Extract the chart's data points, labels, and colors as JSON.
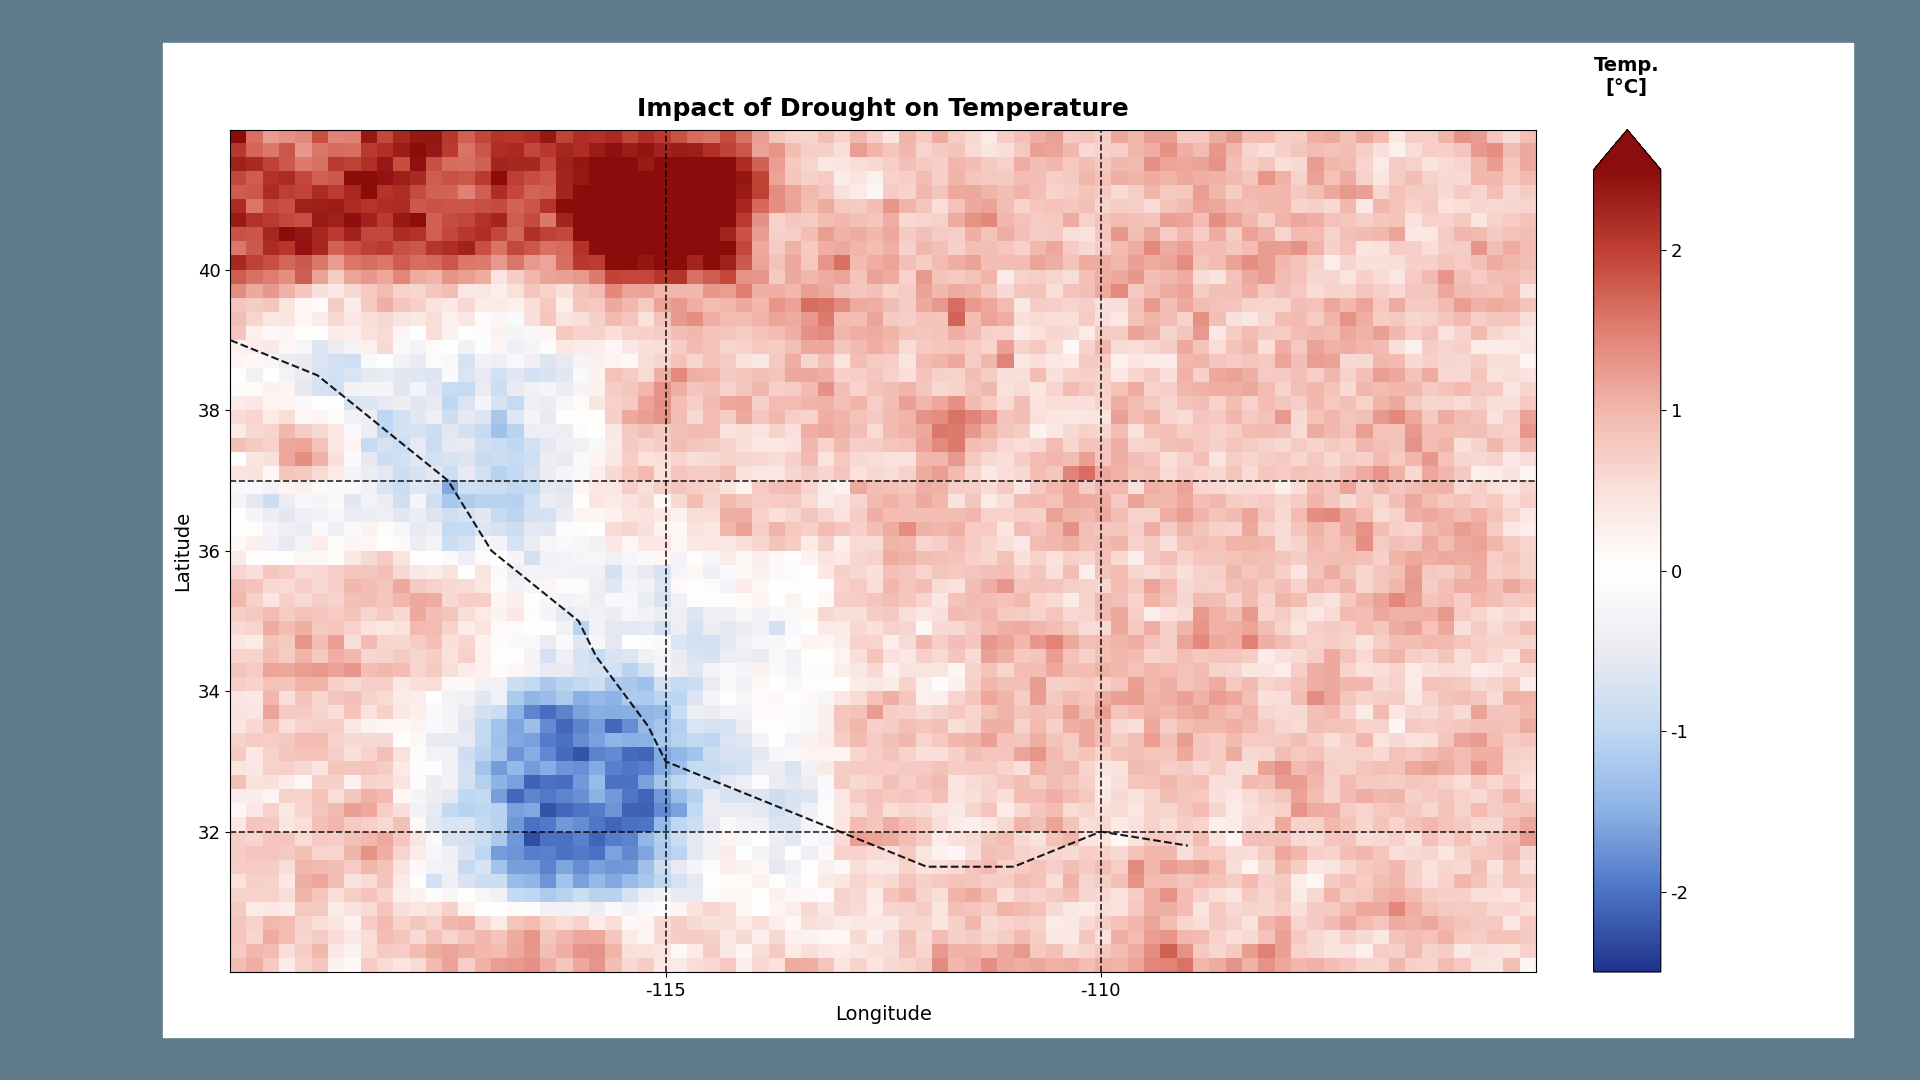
{
  "title": "Impact of Drought on Temperature",
  "xlabel": "Longitude",
  "ylabel": "Latitude",
  "colorbar_label": "Temp.\n[°C]",
  "lon_min": -120,
  "lon_max": -105,
  "lat_min": 30,
  "lat_max": 42,
  "vmin": -2.5,
  "vmax": 2.5,
  "cbar_ticks": [
    -2,
    -1,
    0,
    1,
    2
  ],
  "xticks": [
    -115,
    -110
  ],
  "yticks": [
    32,
    34,
    36,
    38,
    40
  ],
  "dashed_vlines": [
    -115,
    -110
  ],
  "dashed_hlines": [
    37,
    32
  ],
  "background_color": "#607b8b",
  "paper_color": "#ffffff",
  "title_fontsize": 18,
  "label_fontsize": 14,
  "tick_fontsize": 13
}
